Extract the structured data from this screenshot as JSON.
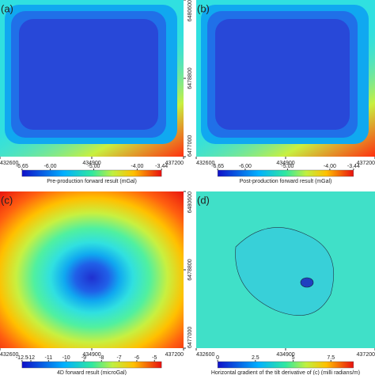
{
  "chart_data": [
    {
      "type": "heatmap",
      "panel_label": "(a)",
      "pattern": "box",
      "xlim": [
        432600,
        437200
      ],
      "xticks": [
        432600,
        434900,
        437200
      ],
      "ylim": [
        6477000,
        6480600
      ],
      "yticks": [
        6477000,
        6478800,
        6480600
      ],
      "colorbar": {
        "label": "Pre-production forward result (mGal)",
        "lim": [
          -6.65,
          -3.44
        ],
        "ticks": [
          {
            "value": -6.65,
            "label": "-6.65"
          },
          {
            "value": -6,
            "label": "-6.00"
          },
          {
            "value": -5,
            "label": "-5.00"
          },
          {
            "value": -4,
            "label": "-4.00"
          },
          {
            "value": -3.44,
            "label": "-3.44"
          }
        ]
      }
    },
    {
      "type": "heatmap",
      "panel_label": "(b)",
      "pattern": "box",
      "xlim": [
        432600,
        437200
      ],
      "xticks": [
        432600,
        434900,
        437200
      ],
      "colorbar": {
        "label": "Post-production forward result (mGal)",
        "lim": [
          -6.65,
          -3.44
        ],
        "ticks": [
          {
            "value": -6.65,
            "label": "-6.65"
          },
          {
            "value": -6,
            "label": "-6.00"
          },
          {
            "value": -5,
            "label": "-5.00"
          },
          {
            "value": -4,
            "label": "-4.00"
          },
          {
            "value": -3.44,
            "label": "-3.44"
          }
        ]
      }
    },
    {
      "type": "heatmap",
      "panel_label": "(c)",
      "pattern": "ring",
      "xlim": [
        432600,
        437200
      ],
      "xticks": [
        432600,
        434900,
        437200
      ],
      "ylim": [
        6477000,
        6480600
      ],
      "yticks": [
        6477000,
        6478800,
        6480600
      ],
      "colorbar": {
        "label": "4D forward result (microGal)",
        "lim": [
          -12.5,
          -4.6
        ],
        "ticks": [
          -12.5,
          -12,
          -11,
          -10,
          -9,
          -8,
          -7,
          -6,
          -5
        ]
      }
    },
    {
      "type": "heatmap",
      "panel_label": "(d)",
      "pattern": "blob",
      "xlim": [
        432600,
        437200
      ],
      "xticks": [
        432600,
        434900,
        437200
      ],
      "colorbar": {
        "label": "Horizontal gradient of the tilt derivative of (c) (milli radians/m)",
        "lim": [
          0,
          9
        ],
        "ticks": [
          0,
          2.5,
          5,
          7.5
        ]
      }
    }
  ]
}
